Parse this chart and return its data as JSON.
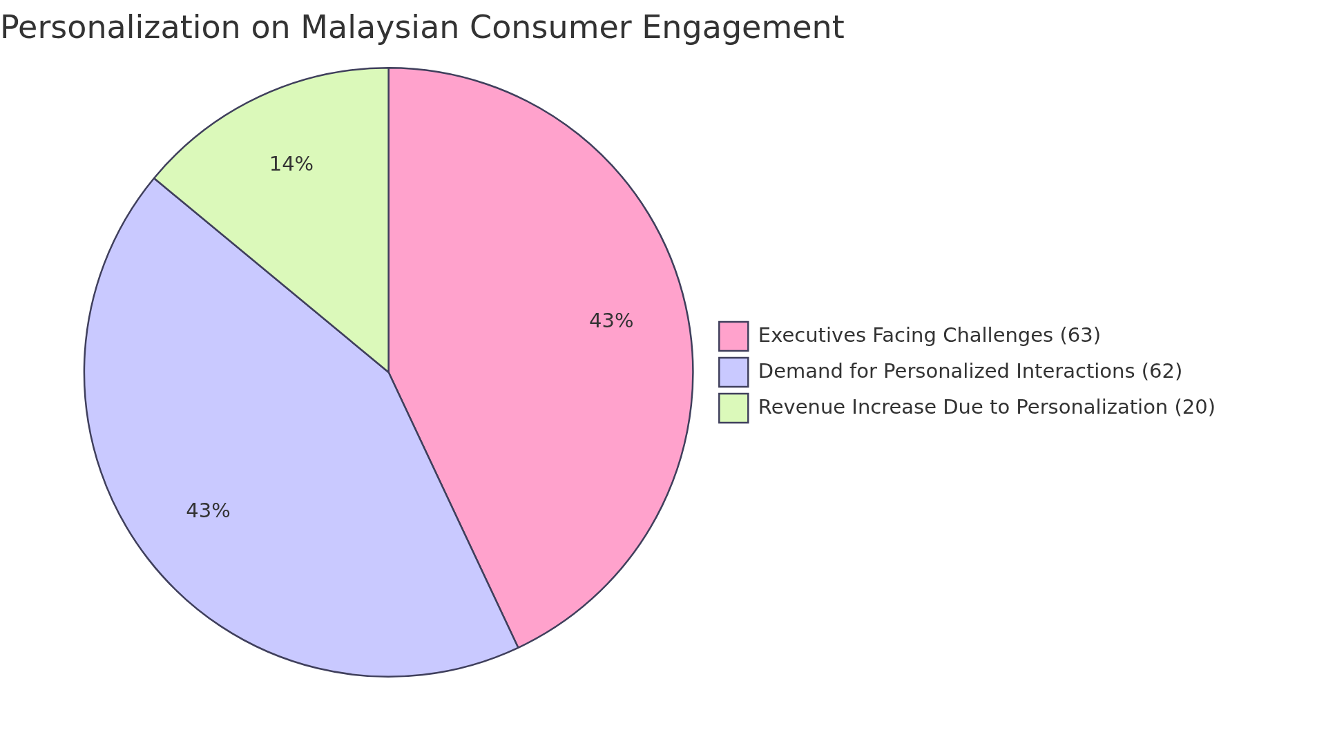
{
  "chart_data": {
    "type": "pie",
    "title": "Personalization on Malaysian Consumer Engagement",
    "categories": [
      "Executives Facing Challenges (63)",
      "Demand for Personalized Interactions (62)",
      "Revenue Increase Due to Personalization (20)"
    ],
    "values": [
      43,
      43,
      14
    ],
    "colors": [
      "#ffa2cc",
      "#c9c9ff",
      "#dbf9ba"
    ],
    "value_labels": [
      "43%",
      "43%",
      "14%"
    ],
    "legend": "right"
  }
}
